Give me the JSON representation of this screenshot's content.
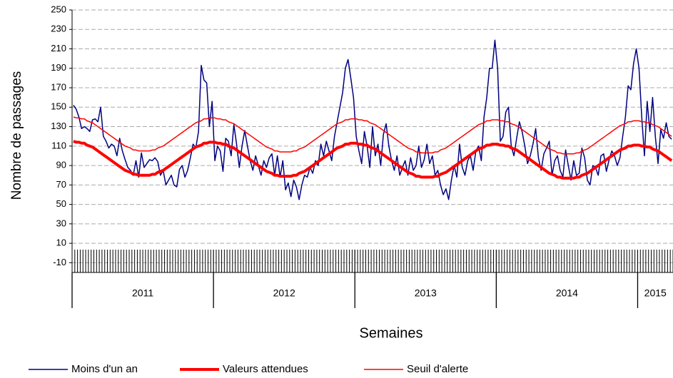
{
  "chart_data": {
    "type": "line",
    "x_label": "Semaines",
    "y_label": "Nombre de passages",
    "year_groups": [
      {
        "label": "2011",
        "weeks": 52
      },
      {
        "label": "2012",
        "weeks": 52
      },
      {
        "label": "2013",
        "weeks": 52
      },
      {
        "label": "2014",
        "weeks": 52
      },
      {
        "label": "2015",
        "weeks": 13
      }
    ],
    "ylim": [
      -20,
      250
    ],
    "yticks": [
      -10,
      10,
      30,
      50,
      70,
      90,
      110,
      130,
      150,
      170,
      190,
      210,
      230,
      250
    ],
    "grid": true,
    "series": [
      {
        "name": "Moins d'un an",
        "color": "#000080",
        "line_width": 1.5,
        "values": [
          152,
          148,
          140,
          128,
          130,
          128,
          125,
          137,
          138,
          135,
          150,
          120,
          115,
          108,
          112,
          110,
          100,
          118,
          105,
          96,
          88,
          85,
          80,
          95,
          78,
          103,
          88,
          92,
          96,
          95,
          98,
          94,
          80,
          85,
          70,
          75,
          80,
          70,
          68,
          86,
          90,
          78,
          85,
          98,
          112,
          108,
          125,
          193,
          178,
          175,
          130,
          156,
          95,
          110,
          105,
          84,
          118,
          115,
          100,
          132,
          112,
          88,
          110,
          126,
          110,
          95,
          85,
          100,
          90,
          80,
          95,
          88,
          98,
          102,
          80,
          100,
          78,
          95,
          65,
          72,
          58,
          75,
          68,
          55,
          70,
          80,
          78,
          88,
          82,
          95,
          90,
          112,
          100,
          115,
          105,
          95,
          120,
          135,
          150,
          165,
          190,
          199,
          180,
          160,
          120,
          105,
          92,
          125,
          110,
          88,
          130,
          100,
          112,
          90,
          122,
          133,
          110,
          95,
          85,
          100,
          80,
          88,
          95,
          80,
          98,
          85,
          90,
          110,
          88,
          96,
          112,
          92,
          100,
          80,
          85,
          70,
          60,
          66,
          55,
          75,
          90,
          78,
          112,
          88,
          80,
          95,
          100,
          85,
          105,
          110,
          95,
          140,
          160,
          190,
          190,
          219,
          190,
          115,
          120,
          145,
          150,
          110,
          100,
          118,
          135,
          125,
          110,
          92,
          100,
          112,
          128,
          98,
          85,
          102,
          108,
          115,
          80,
          95,
          100,
          85,
          78,
          106,
          90,
          75,
          95,
          80,
          82,
          108,
          98,
          75,
          70,
          90,
          88,
          80,
          100,
          102,
          84,
          96,
          105,
          100,
          90,
          98,
          120,
          140,
          172,
          168,
          195,
          210,
          190,
          140,
          100,
          156,
          125,
          160,
          120,
          92,
          127,
          118,
          134,
          120,
          117
        ]
      },
      {
        "name": "Valeurs attendues",
        "color": "#ff0000",
        "line_width": 4,
        "values": [
          115,
          114,
          114,
          113,
          113,
          111,
          110,
          109,
          107,
          105,
          103,
          101,
          99,
          97,
          95,
          93,
          91,
          89,
          87,
          85,
          84,
          83,
          81,
          81,
          80,
          80,
          80,
          80,
          80,
          81,
          81,
          83,
          84,
          85,
          87,
          89,
          91,
          93,
          95,
          97,
          99,
          101,
          103,
          105,
          107,
          109,
          110,
          111,
          113,
          113,
          114,
          114,
          114,
          113,
          113,
          112,
          112,
          110,
          109,
          108,
          106,
          104,
          102,
          100,
          98,
          96,
          94,
          92,
          90,
          88,
          86,
          84,
          83,
          82,
          80,
          80,
          79,
          79,
          79,
          79,
          79,
          80,
          80,
          82,
          83,
          84,
          86,
          88,
          90,
          92,
          94,
          96,
          98,
          100,
          102,
          104,
          106,
          108,
          109,
          110,
          112,
          112,
          113,
          113,
          113,
          112,
          112,
          111,
          111,
          109,
          108,
          107,
          105,
          103,
          101,
          99,
          97,
          95,
          93,
          91,
          89,
          87,
          85,
          83,
          82,
          81,
          79,
          79,
          78,
          78,
          78,
          78,
          78,
          79,
          79,
          81,
          82,
          83,
          85,
          87,
          89,
          91,
          93,
          95,
          97,
          99,
          101,
          103,
          105,
          107,
          108,
          109,
          111,
          111,
          112,
          112,
          112,
          111,
          111,
          110,
          110,
          108,
          107,
          106,
          104,
          102,
          100,
          98,
          96,
          94,
          92,
          90,
          88,
          86,
          84,
          82,
          81,
          80,
          78,
          78,
          77,
          77,
          77,
          77,
          77,
          78,
          78,
          80,
          81,
          82,
          84,
          86,
          88,
          90,
          92,
          94,
          96,
          98,
          100,
          102,
          104,
          106,
          107,
          108,
          110,
          110,
          111,
          111,
          111,
          110,
          110,
          109,
          109,
          107,
          106,
          105,
          103,
          101,
          99,
          97,
          95
        ]
      },
      {
        "name": "Seuil d'alerte",
        "color": "#ff0000",
        "line_width": 1.5,
        "values": [
          140,
          139,
          139,
          138,
          138,
          136,
          135,
          134,
          132,
          130,
          128,
          126,
          124,
          122,
          120,
          118,
          116,
          114,
          112,
          110,
          109,
          108,
          106,
          106,
          105,
          105,
          105,
          105,
          105,
          106,
          106,
          108,
          109,
          110,
          112,
          114,
          116,
          118,
          120,
          122,
          124,
          126,
          128,
          130,
          132,
          134,
          135,
          136,
          138,
          138,
          139,
          139,
          139,
          138,
          138,
          137,
          137,
          135,
          134,
          133,
          131,
          129,
          127,
          125,
          123,
          121,
          119,
          117,
          115,
          113,
          111,
          109,
          108,
          107,
          105,
          105,
          104,
          104,
          104,
          104,
          104,
          105,
          105,
          107,
          108,
          109,
          111,
          113,
          115,
          117,
          119,
          121,
          123,
          125,
          127,
          129,
          131,
          133,
          134,
          135,
          137,
          137,
          138,
          138,
          138,
          137,
          137,
          136,
          136,
          134,
          133,
          132,
          130,
          128,
          126,
          124,
          122,
          120,
          118,
          116,
          114,
          112,
          110,
          108,
          107,
          106,
          104,
          104,
          103,
          103,
          103,
          103,
          103,
          104,
          104,
          106,
          107,
          108,
          110,
          112,
          114,
          116,
          118,
          120,
          122,
          124,
          126,
          128,
          130,
          132,
          133,
          134,
          136,
          136,
          137,
          137,
          137,
          136,
          136,
          135,
          135,
          133,
          132,
          131,
          129,
          127,
          125,
          123,
          121,
          119,
          117,
          115,
          113,
          111,
          109,
          107,
          106,
          105,
          103,
          103,
          102,
          102,
          102,
          102,
          102,
          103,
          103,
          105,
          106,
          107,
          109,
          111,
          113,
          115,
          117,
          119,
          121,
          123,
          125,
          127,
          129,
          131,
          132,
          133,
          135,
          135,
          136,
          136,
          136,
          135,
          135,
          134,
          134,
          132,
          131,
          130,
          128,
          126,
          124,
          122,
          120
        ]
      }
    ]
  }
}
